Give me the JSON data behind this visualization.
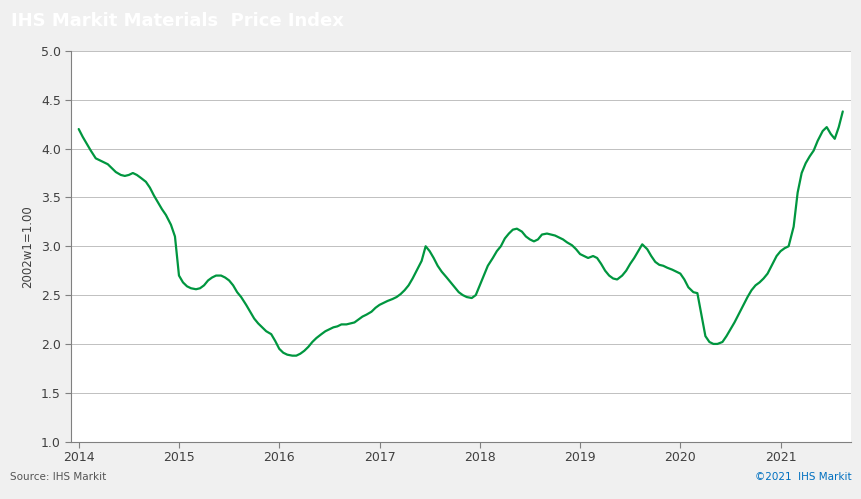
{
  "title": "IHS Markit Materials  Price Index",
  "ylabel": "2002w1=1.00",
  "source_left": "Source: IHS Markit",
  "source_right": "©2021  IHS Markit",
  "line_color": "#00963f",
  "line_width": 1.6,
  "ylim": [
    1.0,
    5.0
  ],
  "yticks": [
    1.0,
    1.5,
    2.0,
    2.5,
    3.0,
    3.5,
    4.0,
    4.5,
    5.0
  ],
  "title_bg_color": "#7f7f7f",
  "title_text_color": "#ffffff",
  "plot_bg_color": "#ffffff",
  "outer_bg_color": "#f0f0f0",
  "footer_bg_color": "#ffffff",
  "grid_color": "#c0c0c0",
  "tick_color": "#808080",
  "label_color": "#404040",
  "x_labels": [
    "2014",
    "2015",
    "2016",
    "2017",
    "2018",
    "2019",
    "2020",
    "2021"
  ],
  "x_tick_positions": [
    2014,
    2015,
    2016,
    2017,
    2018,
    2019,
    2020,
    2021
  ],
  "xlim": [
    2013.92,
    2021.7
  ],
  "data": [
    [
      2014.0,
      4.2
    ],
    [
      2014.04,
      4.12
    ],
    [
      2014.08,
      4.05
    ],
    [
      2014.12,
      3.98
    ],
    [
      2014.17,
      3.9
    ],
    [
      2014.21,
      3.88
    ],
    [
      2014.25,
      3.86
    ],
    [
      2014.29,
      3.84
    ],
    [
      2014.33,
      3.8
    ],
    [
      2014.37,
      3.76
    ],
    [
      2014.42,
      3.73
    ],
    [
      2014.46,
      3.72
    ],
    [
      2014.5,
      3.73
    ],
    [
      2014.54,
      3.75
    ],
    [
      2014.58,
      3.73
    ],
    [
      2014.62,
      3.7
    ],
    [
      2014.67,
      3.66
    ],
    [
      2014.71,
      3.6
    ],
    [
      2014.75,
      3.52
    ],
    [
      2014.79,
      3.45
    ],
    [
      2014.83,
      3.38
    ],
    [
      2014.87,
      3.32
    ],
    [
      2014.92,
      3.22
    ],
    [
      2014.96,
      3.1
    ],
    [
      2015.0,
      2.7
    ],
    [
      2015.04,
      2.63
    ],
    [
      2015.08,
      2.59
    ],
    [
      2015.12,
      2.57
    ],
    [
      2015.17,
      2.56
    ],
    [
      2015.21,
      2.57
    ],
    [
      2015.25,
      2.6
    ],
    [
      2015.29,
      2.65
    ],
    [
      2015.33,
      2.68
    ],
    [
      2015.37,
      2.7
    ],
    [
      2015.42,
      2.7
    ],
    [
      2015.46,
      2.68
    ],
    [
      2015.5,
      2.65
    ],
    [
      2015.54,
      2.6
    ],
    [
      2015.58,
      2.53
    ],
    [
      2015.62,
      2.48
    ],
    [
      2015.67,
      2.4
    ],
    [
      2015.71,
      2.33
    ],
    [
      2015.75,
      2.26
    ],
    [
      2015.79,
      2.21
    ],
    [
      2015.83,
      2.17
    ],
    [
      2015.87,
      2.13
    ],
    [
      2015.92,
      2.1
    ],
    [
      2015.96,
      2.03
    ],
    [
      2016.0,
      1.95
    ],
    [
      2016.04,
      1.91
    ],
    [
      2016.08,
      1.89
    ],
    [
      2016.13,
      1.88
    ],
    [
      2016.17,
      1.88
    ],
    [
      2016.21,
      1.9
    ],
    [
      2016.25,
      1.93
    ],
    [
      2016.29,
      1.97
    ],
    [
      2016.33,
      2.02
    ],
    [
      2016.37,
      2.06
    ],
    [
      2016.42,
      2.1
    ],
    [
      2016.46,
      2.13
    ],
    [
      2016.5,
      2.15
    ],
    [
      2016.54,
      2.17
    ],
    [
      2016.58,
      2.18
    ],
    [
      2016.62,
      2.2
    ],
    [
      2016.67,
      2.2
    ],
    [
      2016.71,
      2.21
    ],
    [
      2016.75,
      2.22
    ],
    [
      2016.79,
      2.25
    ],
    [
      2016.83,
      2.28
    ],
    [
      2016.87,
      2.3
    ],
    [
      2016.92,
      2.33
    ],
    [
      2016.96,
      2.37
    ],
    [
      2017.0,
      2.4
    ],
    [
      2017.04,
      2.42
    ],
    [
      2017.08,
      2.44
    ],
    [
      2017.13,
      2.46
    ],
    [
      2017.17,
      2.48
    ],
    [
      2017.21,
      2.51
    ],
    [
      2017.25,
      2.55
    ],
    [
      2017.29,
      2.6
    ],
    [
      2017.33,
      2.67
    ],
    [
      2017.37,
      2.75
    ],
    [
      2017.42,
      2.85
    ],
    [
      2017.46,
      3.0
    ],
    [
      2017.5,
      2.95
    ],
    [
      2017.54,
      2.88
    ],
    [
      2017.58,
      2.8
    ],
    [
      2017.62,
      2.74
    ],
    [
      2017.67,
      2.68
    ],
    [
      2017.71,
      2.63
    ],
    [
      2017.75,
      2.58
    ],
    [
      2017.79,
      2.53
    ],
    [
      2017.83,
      2.5
    ],
    [
      2017.87,
      2.48
    ],
    [
      2017.92,
      2.47
    ],
    [
      2017.96,
      2.5
    ],
    [
      2018.0,
      2.6
    ],
    [
      2018.04,
      2.7
    ],
    [
      2018.08,
      2.8
    ],
    [
      2018.13,
      2.88
    ],
    [
      2018.17,
      2.95
    ],
    [
      2018.21,
      3.0
    ],
    [
      2018.25,
      3.08
    ],
    [
      2018.29,
      3.13
    ],
    [
      2018.33,
      3.17
    ],
    [
      2018.37,
      3.18
    ],
    [
      2018.42,
      3.15
    ],
    [
      2018.46,
      3.1
    ],
    [
      2018.5,
      3.07
    ],
    [
      2018.54,
      3.05
    ],
    [
      2018.58,
      3.07
    ],
    [
      2018.62,
      3.12
    ],
    [
      2018.67,
      3.13
    ],
    [
      2018.71,
      3.12
    ],
    [
      2018.75,
      3.11
    ],
    [
      2018.79,
      3.09
    ],
    [
      2018.83,
      3.07
    ],
    [
      2018.87,
      3.04
    ],
    [
      2018.92,
      3.01
    ],
    [
      2018.96,
      2.97
    ],
    [
      2019.0,
      2.92
    ],
    [
      2019.04,
      2.9
    ],
    [
      2019.08,
      2.88
    ],
    [
      2019.13,
      2.9
    ],
    [
      2019.17,
      2.88
    ],
    [
      2019.21,
      2.82
    ],
    [
      2019.25,
      2.75
    ],
    [
      2019.29,
      2.7
    ],
    [
      2019.33,
      2.67
    ],
    [
      2019.37,
      2.66
    ],
    [
      2019.42,
      2.7
    ],
    [
      2019.46,
      2.75
    ],
    [
      2019.5,
      2.82
    ],
    [
      2019.54,
      2.88
    ],
    [
      2019.58,
      2.95
    ],
    [
      2019.62,
      3.02
    ],
    [
      2019.67,
      2.97
    ],
    [
      2019.71,
      2.9
    ],
    [
      2019.75,
      2.84
    ],
    [
      2019.79,
      2.81
    ],
    [
      2019.83,
      2.8
    ],
    [
      2019.87,
      2.78
    ],
    [
      2019.92,
      2.76
    ],
    [
      2019.96,
      2.74
    ],
    [
      2020.0,
      2.72
    ],
    [
      2020.04,
      2.66
    ],
    [
      2020.08,
      2.58
    ],
    [
      2020.13,
      2.53
    ],
    [
      2020.17,
      2.52
    ],
    [
      2020.21,
      2.3
    ],
    [
      2020.25,
      2.08
    ],
    [
      2020.29,
      2.02
    ],
    [
      2020.33,
      2.0
    ],
    [
      2020.37,
      2.0
    ],
    [
      2020.42,
      2.02
    ],
    [
      2020.46,
      2.08
    ],
    [
      2020.5,
      2.15
    ],
    [
      2020.54,
      2.22
    ],
    [
      2020.58,
      2.3
    ],
    [
      2020.62,
      2.38
    ],
    [
      2020.67,
      2.48
    ],
    [
      2020.71,
      2.55
    ],
    [
      2020.75,
      2.6
    ],
    [
      2020.79,
      2.63
    ],
    [
      2020.83,
      2.67
    ],
    [
      2020.87,
      2.72
    ],
    [
      2020.92,
      2.82
    ],
    [
      2020.96,
      2.9
    ],
    [
      2021.0,
      2.95
    ],
    [
      2021.04,
      2.98
    ],
    [
      2021.08,
      3.0
    ],
    [
      2021.13,
      3.2
    ],
    [
      2021.17,
      3.55
    ],
    [
      2021.21,
      3.75
    ],
    [
      2021.25,
      3.85
    ],
    [
      2021.29,
      3.92
    ],
    [
      2021.33,
      3.98
    ],
    [
      2021.37,
      4.08
    ],
    [
      2021.42,
      4.18
    ],
    [
      2021.46,
      4.22
    ],
    [
      2021.5,
      4.15
    ],
    [
      2021.54,
      4.1
    ],
    [
      2021.58,
      4.22
    ],
    [
      2021.62,
      4.38
    ]
  ]
}
